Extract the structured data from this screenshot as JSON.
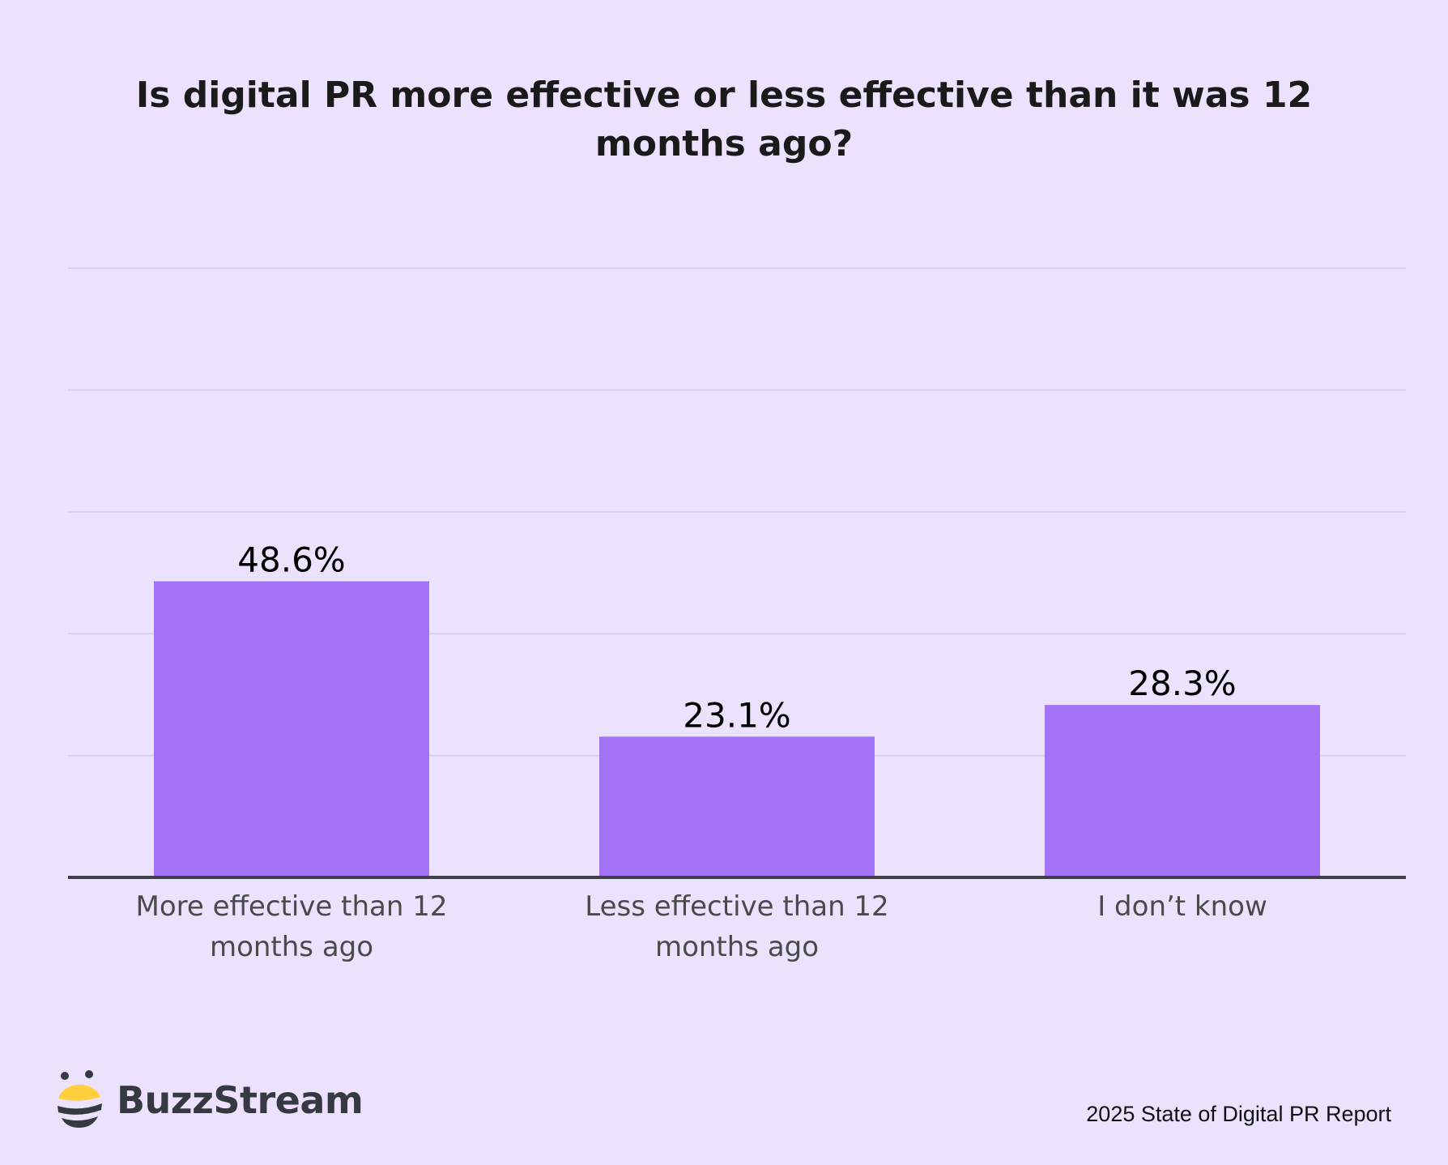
{
  "chart_data": {
    "type": "bar",
    "title": "Is digital PR more effective or less effective than it was 12 months ago?",
    "categories": [
      [
        "More effective than 12",
        "months ago"
      ],
      [
        "Less effective than 12",
        "months ago"
      ],
      [
        "I don’t know"
      ]
    ],
    "values": [
      48.6,
      23.1,
      28.3
    ],
    "value_labels": [
      "48.6%",
      "23.1%",
      "28.3%"
    ],
    "xlabel": "",
    "ylabel": "",
    "ylim": [
      0,
      100
    ],
    "yticks": [
      0,
      20,
      40,
      60,
      80,
      100
    ],
    "ytick_labels_visible": false,
    "grid": true,
    "bar_color": "#a472f7",
    "axis_color": "#3f3f46",
    "grid_color": "#d9cfee",
    "legend": "none"
  },
  "branding": {
    "logo_text": "BuzzStream",
    "logo_icon": "bee-icon",
    "logo_colors": {
      "yellow": "#ffd03b",
      "dark": "#353a42"
    }
  },
  "footer": {
    "report_name": "2025 State of Digital PR Report"
  }
}
